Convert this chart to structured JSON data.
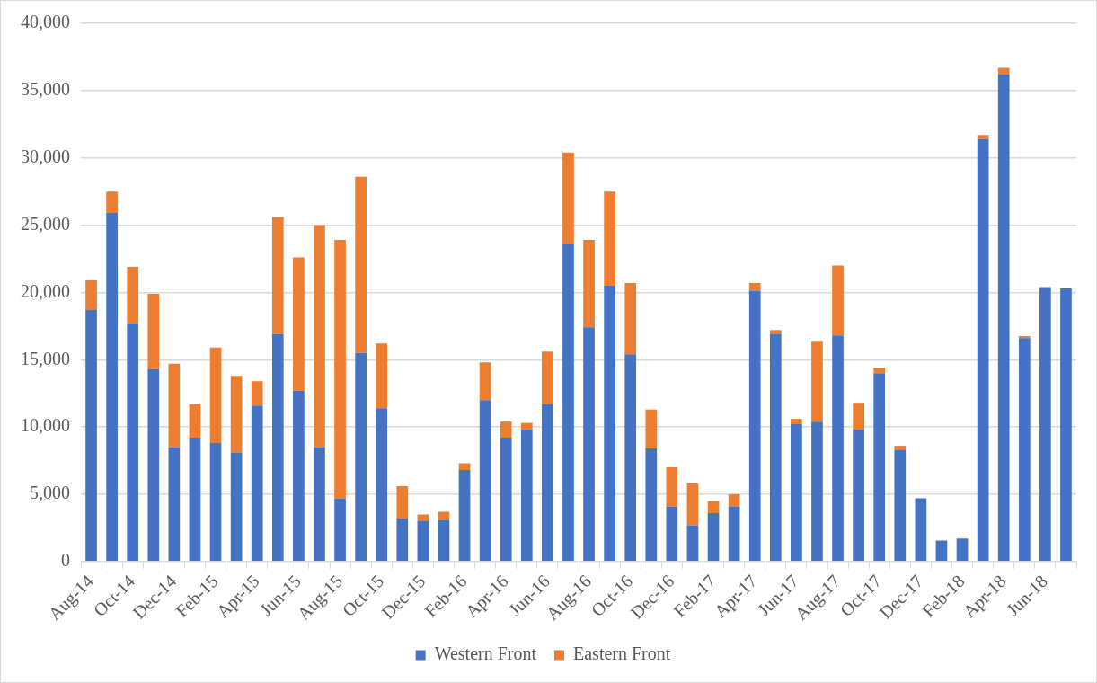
{
  "chart_data": {
    "type": "bar",
    "stacked": true,
    "categories": [
      "Aug-14",
      null,
      "Oct-14",
      null,
      "Dec-14",
      null,
      "Feb-15",
      null,
      "Apr-15",
      null,
      "Jun-15",
      null,
      "Aug-15",
      null,
      "Oct-15",
      null,
      "Dec-15",
      null,
      "Feb-16",
      null,
      "Apr-16",
      null,
      "Jun-16",
      null,
      "Aug-16",
      null,
      "Oct-16",
      null,
      "Dec-16",
      null,
      "Feb-17",
      null,
      "Apr-17",
      null,
      "Jun-17",
      null,
      "Aug-17",
      null,
      "Oct-17",
      null,
      "Dec-17",
      null,
      "Feb-18",
      null,
      "Apr-18",
      null,
      "Jun-18",
      null
    ],
    "series": [
      {
        "name": "Western Front",
        "color": "#4472c4",
        "values": [
          18700,
          25900,
          17700,
          14300,
          8500,
          9200,
          8800,
          8100,
          11600,
          16900,
          12700,
          8500,
          4700,
          15500,
          11400,
          3200,
          3000,
          3100,
          6800,
          12000,
          9200,
          9800,
          11700,
          23600,
          17400,
          20500,
          15400,
          8400,
          4100,
          2700,
          3600,
          4100,
          20100,
          16900,
          10200,
          10400,
          16800,
          9800,
          14000,
          8300,
          4700,
          1550,
          1700,
          31400,
          36200,
          16600,
          20400,
          20300
        ]
      },
      {
        "name": "Eastern Front",
        "color": "#ed7d31",
        "values": [
          2200,
          1600,
          4200,
          5600,
          6200,
          2500,
          7100,
          5700,
          1800,
          8700,
          9900,
          16500,
          19200,
          13100,
          4800,
          2400,
          500,
          600,
          500,
          2800,
          1200,
          500,
          3900,
          6800,
          6500,
          7000,
          5300,
          2900,
          2900,
          3100,
          900,
          900,
          600,
          300,
          400,
          6000,
          5200,
          2000,
          400,
          300,
          0,
          0,
          0,
          300,
          500,
          150,
          0,
          0
        ]
      }
    ],
    "ylim": [
      0,
      40000
    ],
    "yticks": [
      0,
      {
        "value": 5000,
        "label": "5,000"
      },
      {
        "value": 10000,
        "label": "10,000"
      },
      {
        "value": 15000,
        "label": "15,000"
      },
      {
        "value": 20000,
        "label": "20,000"
      },
      {
        "value": 25000,
        "label": "25,000"
      },
      {
        "value": 30000,
        "label": "30,000"
      },
      {
        "value": 35000,
        "label": "35,000"
      },
      {
        "value": 40000,
        "label": "40,000"
      }
    ],
    "grid": "y",
    "legend": "bottom"
  }
}
